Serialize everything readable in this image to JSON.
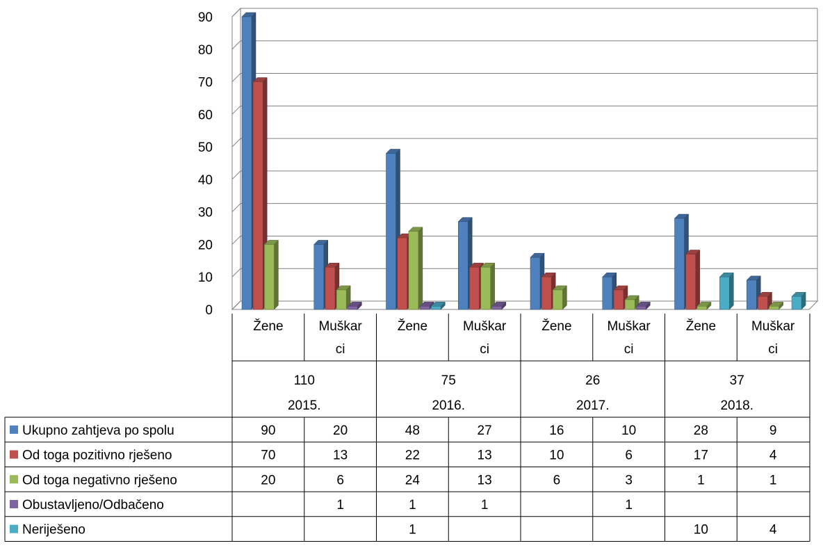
{
  "chart_data": {
    "type": "bar",
    "subtype": "3d-clustered-column-with-data-table",
    "ylim": [
      0,
      90
    ],
    "yticks": [
      0,
      10,
      20,
      30,
      40,
      50,
      60,
      70,
      80,
      90
    ],
    "grid": true,
    "groups": [
      {
        "year": "2015.",
        "total": "110",
        "categories": [
          "Žene",
          "Muškarci"
        ]
      },
      {
        "year": "2016.",
        "total": "75",
        "categories": [
          "Žene",
          "Muškarci"
        ]
      },
      {
        "year": "2017.",
        "total": "26",
        "categories": [
          "Žene",
          "Muškarci"
        ]
      },
      {
        "year": "2018.",
        "total": "37",
        "categories": [
          "Žene",
          "Muškarci"
        ]
      }
    ],
    "category_label_lines": {
      "Žene": [
        "Žene"
      ],
      "Muškarci": [
        "Muškar",
        "ci"
      ]
    },
    "series": [
      {
        "name": "Ukupno zahtjeva po spolu",
        "color": "#4F81BD",
        "values": [
          90,
          20,
          48,
          27,
          16,
          10,
          28,
          9
        ]
      },
      {
        "name": "Od toga pozitivno rješeno",
        "color": "#C0504D",
        "values": [
          70,
          13,
          22,
          13,
          10,
          6,
          17,
          4
        ]
      },
      {
        "name": "Od toga negativno rješeno",
        "color": "#9BBB59",
        "values": [
          20,
          6,
          24,
          13,
          6,
          3,
          1,
          1
        ]
      },
      {
        "name": "Obustavljeno/Odbačeno",
        "color": "#8064A2",
        "values": [
          null,
          1,
          1,
          1,
          null,
          1,
          null,
          null
        ]
      },
      {
        "name": "Neriješeno",
        "color": "#4BACC6",
        "values": [
          null,
          null,
          1,
          null,
          null,
          null,
          10,
          4
        ]
      }
    ]
  }
}
